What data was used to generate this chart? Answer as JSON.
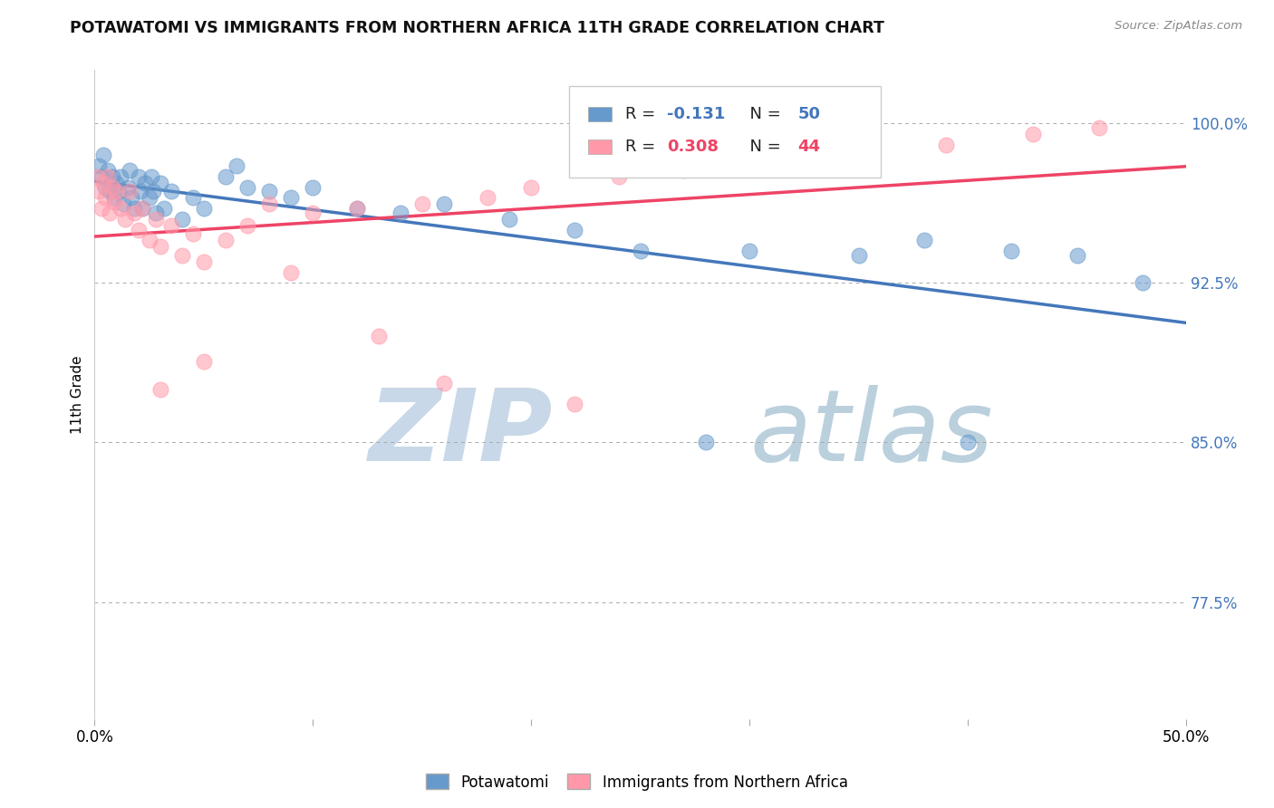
{
  "title": "POTAWATOMI VS IMMIGRANTS FROM NORTHERN AFRICA 11TH GRADE CORRELATION CHART",
  "source": "Source: ZipAtlas.com",
  "ylabel": "11th Grade",
  "xlim": [
    0.0,
    0.5
  ],
  "ylim": [
    0.72,
    1.025
  ],
  "ytick_labels": [
    "77.5%",
    "85.0%",
    "92.5%",
    "100.0%"
  ],
  "ytick_values": [
    0.775,
    0.85,
    0.925,
    1.0
  ],
  "xtick_values": [
    0.0,
    0.1,
    0.2,
    0.3,
    0.4,
    0.5
  ],
  "xtick_labels": [
    "0.0%",
    "",
    "",
    "",
    "",
    "50.0%"
  ],
  "blue_color": "#6699CC",
  "pink_color": "#FF99AA",
  "trendline_blue": "#4477BB",
  "trendline_pink": "#EE4466",
  "watermark_zip_color": "#C8D8E8",
  "watermark_atlas_color": "#B0C8D8",
  "blue_scatter_x": [
    0.002,
    0.003,
    0.004,
    0.005,
    0.006,
    0.007,
    0.008,
    0.009,
    0.01,
    0.011,
    0.012,
    0.013,
    0.015,
    0.016,
    0.017,
    0.018,
    0.02,
    0.021,
    0.022,
    0.023,
    0.025,
    0.026,
    0.027,
    0.028,
    0.03,
    0.032,
    0.035,
    0.04,
    0.045,
    0.05,
    0.06,
    0.065,
    0.07,
    0.08,
    0.09,
    0.1,
    0.12,
    0.14,
    0.16,
    0.19,
    0.22,
    0.25,
    0.3,
    0.35,
    0.38,
    0.42,
    0.45,
    0.48,
    0.4,
    0.28
  ],
  "blue_scatter_y": [
    0.98,
    0.975,
    0.985,
    0.97,
    0.978,
    0.968,
    0.975,
    0.965,
    0.972,
    0.968,
    0.975,
    0.962,
    0.97,
    0.978,
    0.965,
    0.96,
    0.975,
    0.968,
    0.96,
    0.972,
    0.965,
    0.975,
    0.968,
    0.958,
    0.972,
    0.96,
    0.968,
    0.955,
    0.965,
    0.96,
    0.975,
    0.98,
    0.97,
    0.968,
    0.965,
    0.97,
    0.96,
    0.958,
    0.962,
    0.955,
    0.95,
    0.94,
    0.94,
    0.938,
    0.945,
    0.94,
    0.938,
    0.925,
    0.85,
    0.85
  ],
  "pink_scatter_x": [
    0.001,
    0.002,
    0.003,
    0.004,
    0.005,
    0.006,
    0.007,
    0.008,
    0.009,
    0.01,
    0.012,
    0.014,
    0.016,
    0.018,
    0.02,
    0.022,
    0.025,
    0.028,
    0.03,
    0.035,
    0.04,
    0.045,
    0.05,
    0.06,
    0.07,
    0.08,
    0.1,
    0.12,
    0.15,
    0.18,
    0.2,
    0.24,
    0.27,
    0.31,
    0.35,
    0.39,
    0.43,
    0.46,
    0.22,
    0.16,
    0.09,
    0.13,
    0.03,
    0.05
  ],
  "pink_scatter_y": [
    0.975,
    0.968,
    0.96,
    0.972,
    0.965,
    0.975,
    0.958,
    0.97,
    0.963,
    0.968,
    0.96,
    0.955,
    0.968,
    0.958,
    0.95,
    0.96,
    0.945,
    0.955,
    0.942,
    0.952,
    0.938,
    0.948,
    0.935,
    0.945,
    0.952,
    0.962,
    0.958,
    0.96,
    0.962,
    0.965,
    0.97,
    0.975,
    0.978,
    0.982,
    0.985,
    0.99,
    0.995,
    0.998,
    0.868,
    0.878,
    0.93,
    0.9,
    0.875,
    0.888
  ]
}
